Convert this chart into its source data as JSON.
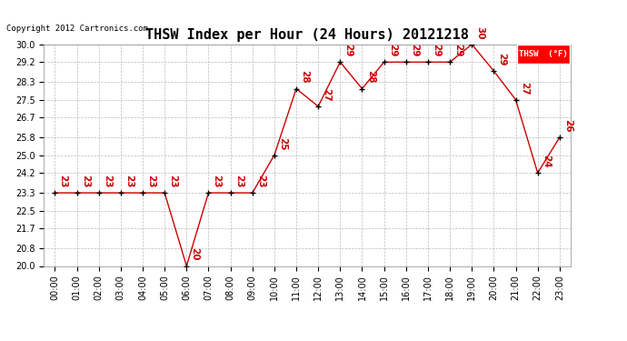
{
  "title": "THSW Index per Hour (24 Hours) 20121218",
  "copyright": "Copyright 2012 Cartronics.com",
  "legend_label": "THSW  (°F)",
  "hours": [
    0,
    1,
    2,
    3,
    4,
    5,
    6,
    7,
    8,
    9,
    10,
    11,
    12,
    13,
    14,
    15,
    16,
    17,
    18,
    19,
    20,
    21,
    22,
    23
  ],
  "vals": [
    23.3,
    23.3,
    23.3,
    23.3,
    23.3,
    23.3,
    20.0,
    23.3,
    23.3,
    23.3,
    25.0,
    28.0,
    27.2,
    29.2,
    28.0,
    29.2,
    29.2,
    29.2,
    29.2,
    30.0,
    28.8,
    27.5,
    24.2,
    25.8
  ],
  "labels": [
    "23",
    "23",
    "23",
    "23",
    "23",
    "23",
    "20",
    "23",
    "23",
    "23",
    "25",
    "28",
    "27",
    "29",
    "28",
    "29",
    "29",
    "29",
    "29",
    "30",
    "29",
    "27",
    "24",
    "26"
  ],
  "ylim": [
    20.0,
    30.0
  ],
  "yticks": [
    20.0,
    20.8,
    21.7,
    22.5,
    23.3,
    24.2,
    25.0,
    25.8,
    26.7,
    27.5,
    28.3,
    29.2,
    30.0
  ],
  "line_color": "#cc0000",
  "marker_color": "black",
  "label_color": "#cc0000",
  "bg_color": "white",
  "grid_color": "#bbbbbb",
  "title_fontsize": 11,
  "axis_fontsize": 7,
  "label_fontsize": 7.5
}
